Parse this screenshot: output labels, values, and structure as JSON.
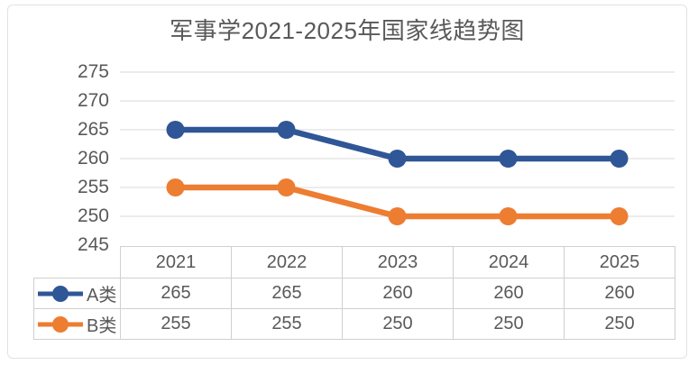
{
  "chart_data": {
    "type": "line",
    "title": "军事学2021-2025年国家线趋势图",
    "categories": [
      "2021",
      "2022",
      "2023",
      "2024",
      "2025"
    ],
    "series": [
      {
        "name": "A类",
        "values": [
          265,
          265,
          260,
          260,
          260
        ],
        "color": "#2F5696"
      },
      {
        "name": "B类",
        "values": [
          255,
          255,
          250,
          250,
          250
        ],
        "color": "#ED7D31"
      }
    ],
    "ylim": [
      245,
      275
    ],
    "yticks": [
      275,
      270,
      265,
      260,
      255,
      250,
      245
    ],
    "grid": "horizontal",
    "gridline_color": "#e5e5e5",
    "axis_text_color": "#595959",
    "table_border_color": "#d1cfcf",
    "legend_position": "data-table-left-column"
  }
}
